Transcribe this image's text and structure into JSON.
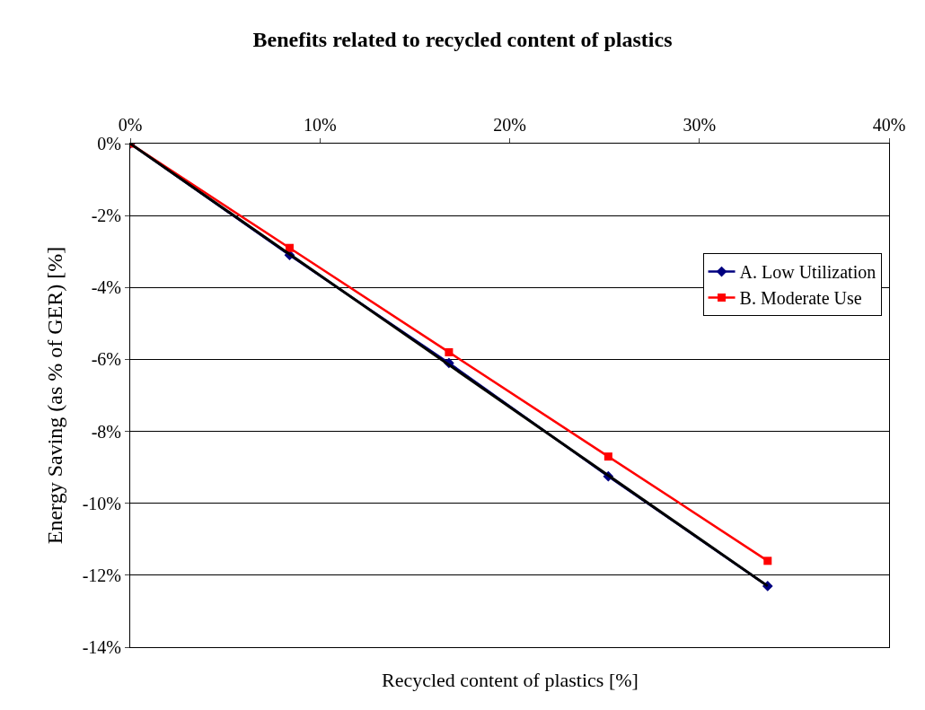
{
  "chart_data": {
    "type": "line",
    "title": "Benefits related to recycled content of plastics",
    "xlabel": "Recycled content of plastics [%]",
    "ylabel": "Energy Saving (as % of GER) [%]",
    "x": [
      0,
      8.4,
      16.8,
      25.2,
      33.6
    ],
    "series": [
      {
        "name": "A. Low Utilization",
        "color": "#000080",
        "marker": "diamond",
        "values": [
          0,
          -3.1,
          -6.1,
          -9.25,
          -12.3
        ]
      },
      {
        "name": "B. Moderate Use",
        "color": "#ff0000",
        "marker": "square",
        "values": [
          0,
          -2.9,
          -5.8,
          -8.7,
          -11.6
        ]
      },
      {
        "type": "line",
        "color": "#000000",
        "marker": "none",
        "x": [
          0,
          33.6
        ],
        "values": [
          0,
          -12.3
        ]
      }
    ],
    "xlim": [
      0,
      40
    ],
    "xticks": [
      {
        "value": 0,
        "label": "0%"
      },
      {
        "value": 10,
        "label": "10%"
      },
      {
        "value": 20,
        "label": "20%"
      },
      {
        "value": 30,
        "label": "30%"
      },
      {
        "value": 40,
        "label": "40%"
      }
    ],
    "ylim": [
      -14,
      0
    ],
    "yticks": [
      {
        "value": 0,
        "label": "0%"
      },
      {
        "value": -2,
        "label": "-2%"
      },
      {
        "value": -4,
        "label": "-4%"
      },
      {
        "value": -6,
        "label": "-6%"
      },
      {
        "value": -8,
        "label": "-8%"
      },
      {
        "value": -10,
        "label": "-10%"
      },
      {
        "value": -12,
        "label": "-12%"
      },
      {
        "value": -14,
        "label": "-14%"
      }
    ],
    "grid": "y",
    "legend": "right"
  }
}
